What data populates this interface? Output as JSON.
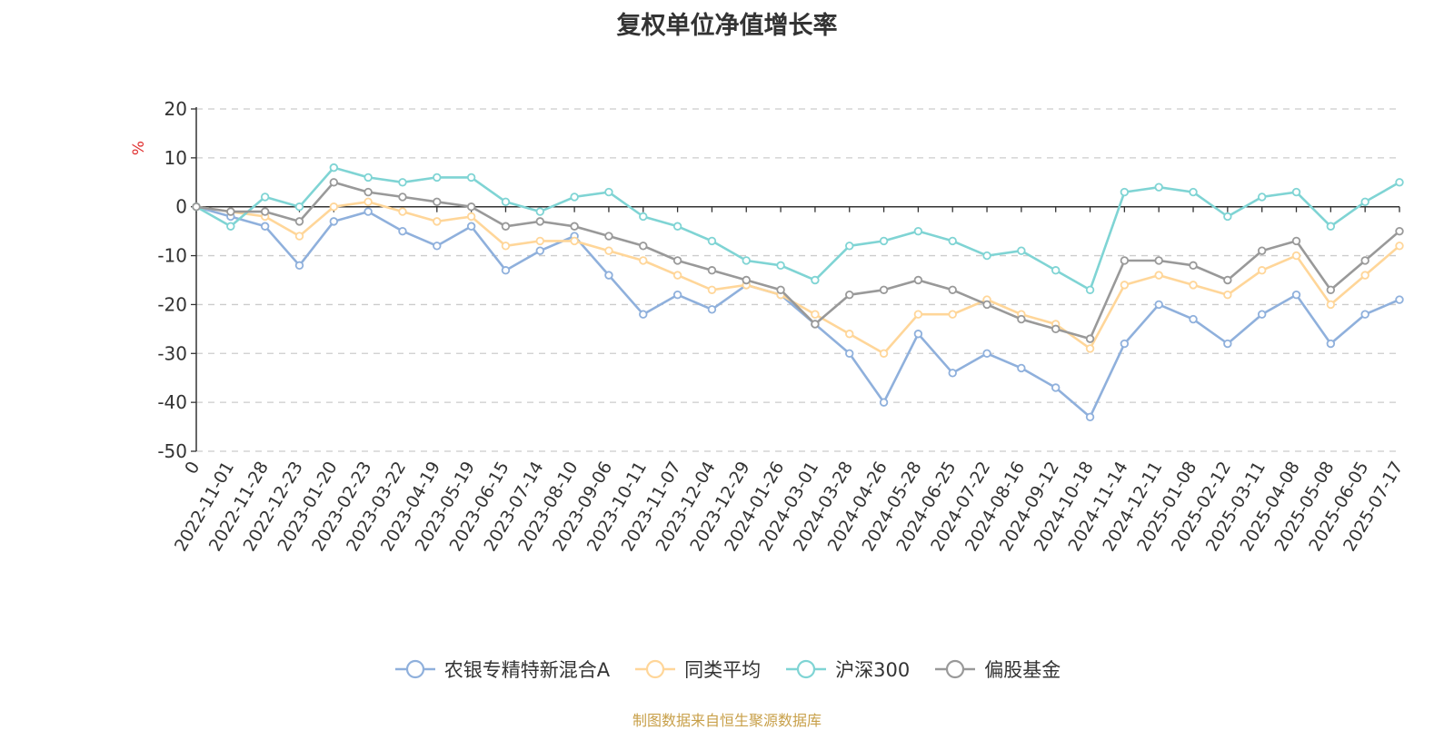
{
  "chart_data": {
    "type": "line",
    "title": "复权单位净值增长率",
    "ylabel": "%",
    "ylim": [
      -50,
      20
    ],
    "yticks": [
      20,
      10,
      0,
      -10,
      -20,
      -30,
      -40,
      -50
    ],
    "grid": true,
    "legend_position": "bottom",
    "categories": [
      "0",
      "2022-11-01",
      "2022-11-28",
      "2022-12-23",
      "2023-01-20",
      "2023-02-23",
      "2023-03-22",
      "2023-04-19",
      "2023-05-19",
      "2023-06-15",
      "2023-07-14",
      "2023-08-10",
      "2023-09-06",
      "2023-10-11",
      "2023-11-07",
      "2023-12-04",
      "2023-12-29",
      "2024-01-26",
      "2024-03-01",
      "2024-03-28",
      "2024-04-26",
      "2024-05-28",
      "2024-06-25",
      "2024-07-22",
      "2024-08-16",
      "2024-09-12",
      "2024-10-18",
      "2024-11-14",
      "2024-12-11",
      "2025-01-08",
      "2025-02-12",
      "2025-03-11",
      "2025-04-08",
      "2025-05-08",
      "2025-06-05",
      "2025-07-17"
    ],
    "series": [
      {
        "name": "农银专精特新混合A",
        "color": "#8fb0dc",
        "values": [
          0,
          -2,
          -4,
          -12,
          -3,
          -1,
          -5,
          -8,
          -4,
          -13,
          -9,
          -6,
          -14,
          -22,
          -18,
          -21,
          -16,
          -18,
          -24,
          -30,
          -40,
          -26,
          -34,
          -30,
          -33,
          -37,
          -43,
          -28,
          -20,
          -23,
          -28,
          -22,
          -18,
          -28,
          -22,
          -19
        ]
      },
      {
        "name": "同类平均",
        "color": "#ffd699",
        "values": [
          0,
          -1,
          -2,
          -6,
          0,
          1,
          -1,
          -3,
          -2,
          -8,
          -7,
          -7,
          -9,
          -11,
          -14,
          -17,
          -16,
          -18,
          -22,
          -26,
          -30,
          -22,
          -22,
          -19,
          -22,
          -24,
          -29,
          -16,
          -14,
          -16,
          -18,
          -13,
          -10,
          -20,
          -14,
          -8
        ]
      },
      {
        "name": "沪深300",
        "color": "#7fd4d4",
        "values": [
          0,
          -4,
          2,
          0,
          8,
          6,
          5,
          6,
          6,
          1,
          -1,
          2,
          3,
          -2,
          -4,
          -7,
          -11,
          -12,
          -15,
          -8,
          -7,
          -5,
          -7,
          -10,
          -9,
          -13,
          -17,
          3,
          4,
          3,
          -2,
          2,
          3,
          -4,
          1,
          5
        ]
      },
      {
        "name": "偏股基金",
        "color": "#999999",
        "values": [
          0,
          -1,
          -1,
          -3,
          5,
          3,
          2,
          1,
          0,
          -4,
          -3,
          -4,
          -6,
          -8,
          -11,
          -13,
          -15,
          -17,
          -24,
          -18,
          -17,
          -15,
          -17,
          -20,
          -23,
          -25,
          -27,
          -11,
          -11,
          -12,
          -15,
          -9,
          -7,
          -17,
          -11,
          -5
        ]
      }
    ]
  },
  "source_text": "制图数据来自恒生聚源数据库"
}
